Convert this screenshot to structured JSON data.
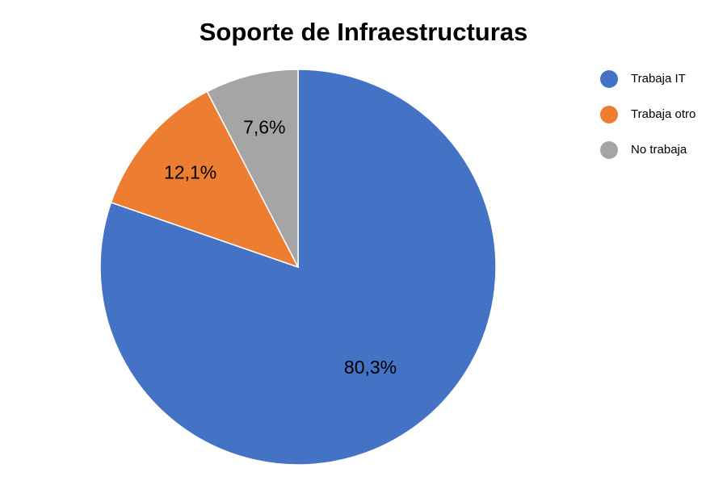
{
  "chart_data": {
    "type": "pie",
    "title": "Soporte de Infraestructuras",
    "categories": [
      "Trabaja IT",
      "Trabaja otro",
      "No trabaja"
    ],
    "values": [
      80.3,
      12.1,
      7.6
    ],
    "data_labels": [
      "80,3%",
      "12,1%",
      "7,6%"
    ],
    "colors": [
      "#4472C4",
      "#ED7D31",
      "#A5A5A5"
    ],
    "legend_position": "top-right",
    "start_angle_deg": 0,
    "direction": "clockwise"
  }
}
